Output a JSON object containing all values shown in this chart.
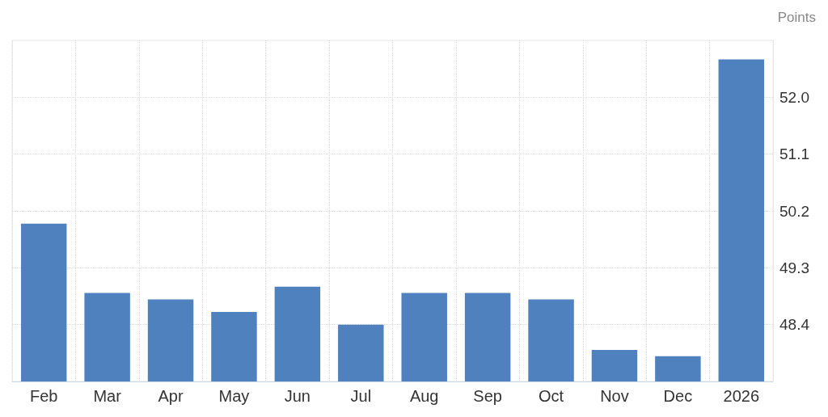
{
  "chart_data": {
    "type": "bar",
    "ylabel": "Points",
    "categories": [
      "Feb",
      "Mar",
      "Apr",
      "May",
      "Jun",
      "Jul",
      "Aug",
      "Sep",
      "Oct",
      "Nov",
      "Dec",
      "2026"
    ],
    "values": [
      50.0,
      48.9,
      48.8,
      48.6,
      49.0,
      48.4,
      48.9,
      48.9,
      48.8,
      48.0,
      47.9,
      52.6
    ],
    "color": "#4e81bd",
    "ylim": [
      47.5,
      52.9
    ],
    "yticks": [
      48.4,
      49.3,
      50.2,
      51.1,
      {
        "value": 52,
        "label": "52.0"
      }
    ],
    "grid": true
  }
}
